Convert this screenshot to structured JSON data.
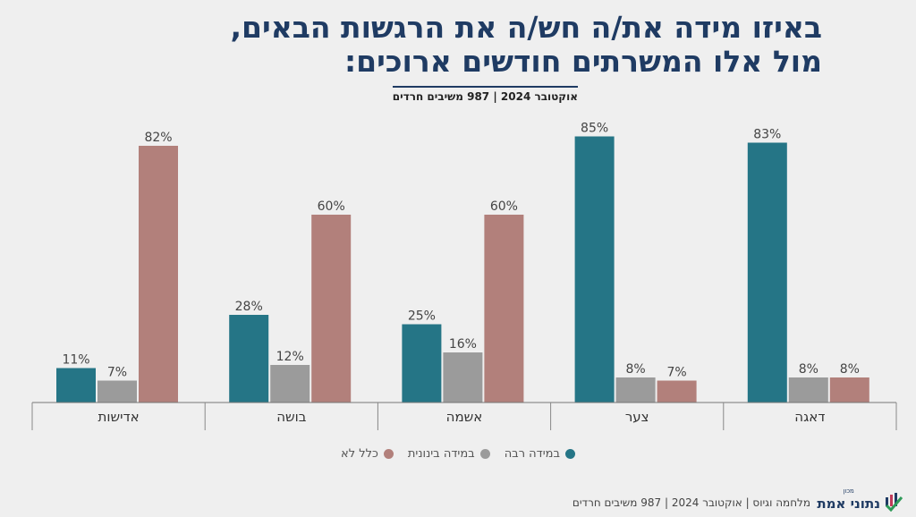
{
  "title_line1": "באיזו מידה את/ה חש/ה את הרגשות הבאים,",
  "title_line2": "מול אלו המשרתים חודשים ארוכים:",
  "subtitle": "אוקטובר 2024 | 987 משיבים חרדים",
  "footer": "מלחמה וגיוס | אוקטובר 2024 | 987 משיבים חרדים",
  "logo": {
    "name": "נתוני אמת",
    "small": "מכון",
    "icon": "bar-check-icon"
  },
  "colors": {
    "great": "#257586",
    "medium": "#9b9b9b",
    "none": "#b2807b",
    "title": "#1f3b63"
  },
  "chart_data": {
    "type": "bar",
    "categories": [
      "דאגה",
      "צער",
      "אשמה",
      "בושה",
      "אדישות"
    ],
    "series": [
      {
        "name": "במידה רבה",
        "values": [
          83,
          85,
          25,
          28,
          11
        ],
        "color": "#257586"
      },
      {
        "name": "במידה בינונית",
        "values": [
          8,
          8,
          16,
          12,
          7
        ],
        "color": "#9b9b9b"
      },
      {
        "name": "כלל לא",
        "values": [
          8,
          7,
          60,
          60,
          82
        ],
        "color": "#b2807b"
      }
    ],
    "value_suffix": "%",
    "ylim": [
      0,
      85
    ],
    "grid": false,
    "legend_position": "bottom"
  }
}
